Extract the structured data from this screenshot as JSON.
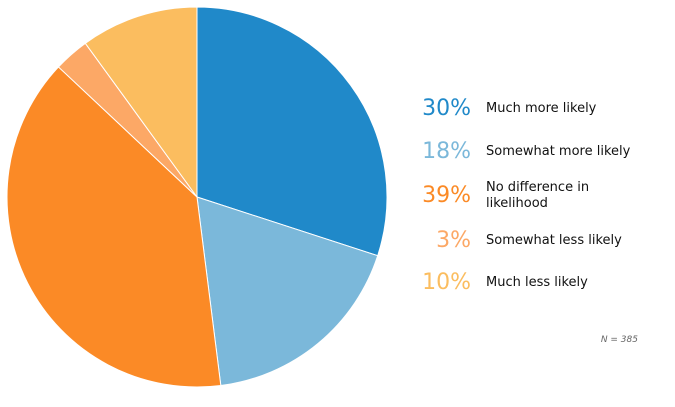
{
  "chart_data": {
    "type": "pie",
    "title": "",
    "categories": [
      "Much more likely",
      "Somewhat more likely",
      "No difference in likelihood",
      "Somewhat less likely",
      "Much less likely"
    ],
    "values": [
      30,
      18,
      39,
      3,
      10
    ],
    "value_labels": [
      "30%",
      "18%",
      "39%",
      "3%",
      "10%"
    ],
    "label_lines": [
      [
        "Much more likely"
      ],
      [
        "Somewhat more likely"
      ],
      [
        "No difference in",
        "likelihood"
      ],
      [
        "Somewhat less likely"
      ],
      [
        "Much less likely"
      ]
    ],
    "colors": [
      "#2089c9",
      "#7bb8da",
      "#fb8a26",
      "#fca866",
      "#fbbd5f"
    ],
    "start": "12 o'clock",
    "direction": "clockwise",
    "legend_position": "right",
    "note": "N = 385"
  }
}
